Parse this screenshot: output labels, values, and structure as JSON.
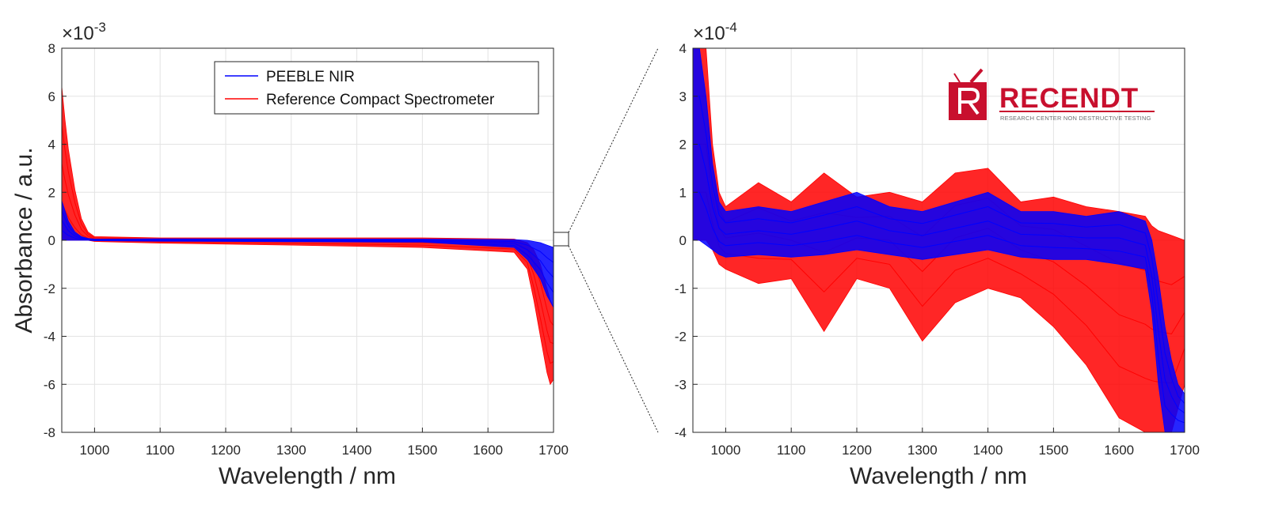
{
  "colors": {
    "blue": "#0000ff",
    "red": "#ff0000",
    "grid": "#e3e3e3",
    "axis": "#262626",
    "logo": "#c8102e"
  },
  "logo": {
    "title": "RECENDT",
    "subtitle": "RESEARCH CENTER NON DESTRUCTIVE TESTING"
  },
  "chart_data": [
    {
      "type": "line",
      "panel": "left",
      "title": "",
      "xlabel": "Wavelength / nm",
      "ylabel": "Absorbance / a.u.",
      "exponent": {
        "base": "×10",
        "power": "-3"
      },
      "xlim": [
        950,
        1700
      ],
      "ylim": [
        -8,
        8
      ],
      "xticks": [
        1000,
        1100,
        1200,
        1300,
        1400,
        1500,
        1600,
        1700
      ],
      "yticks": [
        -8,
        -6,
        -4,
        -2,
        0,
        2,
        4,
        6,
        8
      ],
      "grid": true,
      "legend": {
        "position": "top-center",
        "entries": [
          "PEEBLE NIR",
          "Reference Compact Spectrometer"
        ]
      },
      "series": [
        {
          "name": "PEEBLE NIR",
          "color": "#0000ff",
          "envelope_x": [
            950,
            960,
            970,
            980,
            990,
            1000,
            1100,
            1300,
            1500,
            1640,
            1660,
            1680,
            1690,
            1700
          ],
          "upper": [
            1.65,
            0.8,
            0.35,
            0.15,
            0.08,
            0.05,
            0.06,
            0.05,
            0.05,
            0.03,
            0.0,
            -0.1,
            -0.2,
            -0.3
          ],
          "lower": [
            0,
            0,
            0,
            0,
            0,
            -0.02,
            -0.04,
            -0.06,
            -0.08,
            -0.3,
            -0.8,
            -1.6,
            -2.3,
            -2.8
          ]
        },
        {
          "name": "Reference Compact Spectrometer",
          "color": "#ff0000",
          "envelope_x": [
            950,
            955,
            960,
            970,
            980,
            990,
            1000,
            1100,
            1300,
            1500,
            1640,
            1660,
            1670,
            1680,
            1690,
            1695,
            1700
          ],
          "upper": [
            6.4,
            5.0,
            3.8,
            2.1,
            0.9,
            0.35,
            0.15,
            0.1,
            0.1,
            0.1,
            0.05,
            -0.1,
            -0.4,
            -1.0,
            -2.0,
            -2.5,
            -2.8
          ],
          "lower": [
            0,
            0,
            0,
            0,
            0,
            0,
            -0.05,
            -0.12,
            -0.2,
            -0.3,
            -0.5,
            -1.2,
            -2.5,
            -4.0,
            -5.5,
            -6.0,
            -5.8
          ]
        }
      ]
    },
    {
      "type": "line",
      "panel": "right-zoom",
      "title": "",
      "xlabel": "Wavelength / nm",
      "ylabel": "",
      "exponent": {
        "base": "×10",
        "power": "-4"
      },
      "xlim": [
        950,
        1700
      ],
      "ylim": [
        -4,
        4
      ],
      "xticks": [
        1000,
        1100,
        1200,
        1300,
        1400,
        1500,
        1600,
        1700
      ],
      "yticks": [
        -4,
        -3,
        -2,
        -1,
        0,
        1,
        2,
        3,
        4
      ],
      "grid": true,
      "series": [
        {
          "name": "PEEBLE NIR",
          "color": "#0000ff",
          "envelope_x": [
            950,
            960,
            970,
            980,
            990,
            1000,
            1050,
            1100,
            1150,
            1200,
            1250,
            1300,
            1350,
            1400,
            1450,
            1500,
            1550,
            1600,
            1640,
            1650,
            1660,
            1670,
            1680,
            1690,
            1700
          ],
          "upper": [
            4,
            4,
            3.0,
            1.6,
            0.8,
            0.6,
            0.7,
            0.6,
            0.8,
            1.0,
            0.7,
            0.6,
            0.8,
            1.0,
            0.6,
            0.6,
            0.5,
            0.6,
            0.4,
            0.0,
            -0.8,
            -1.8,
            -2.5,
            -3.0,
            -3.2
          ],
          "lower": [
            0,
            0,
            -0.1,
            -0.2,
            -0.3,
            -0.35,
            -0.3,
            -0.35,
            -0.3,
            -0.2,
            -0.3,
            -0.4,
            -0.3,
            -0.2,
            -0.35,
            -0.4,
            -0.4,
            -0.5,
            -0.6,
            -1.5,
            -3.0,
            -4,
            -4,
            -4,
            -4
          ]
        },
        {
          "name": "Reference Compact Spectrometer",
          "color": "#ff0000",
          "envelope_x": [
            950,
            960,
            970,
            980,
            990,
            1000,
            1050,
            1100,
            1150,
            1200,
            1250,
            1300,
            1350,
            1400,
            1450,
            1500,
            1550,
            1600,
            1640,
            1650,
            1660,
            1680,
            1700
          ],
          "upper": [
            4,
            4,
            4,
            2.0,
            1.0,
            0.7,
            1.2,
            0.8,
            1.4,
            0.9,
            1.0,
            0.8,
            1.4,
            1.5,
            0.8,
            0.9,
            0.7,
            0.6,
            0.5,
            0.3,
            0.2,
            0.1,
            0.0
          ],
          "lower": [
            0,
            0,
            0,
            -0.2,
            -0.5,
            -0.6,
            -0.9,
            -0.8,
            -1.9,
            -0.8,
            -1.0,
            -2.1,
            -1.3,
            -1.0,
            -1.2,
            -1.8,
            -2.6,
            -3.7,
            -4,
            -4,
            -4,
            -4,
            -3.0
          ]
        }
      ]
    }
  ]
}
